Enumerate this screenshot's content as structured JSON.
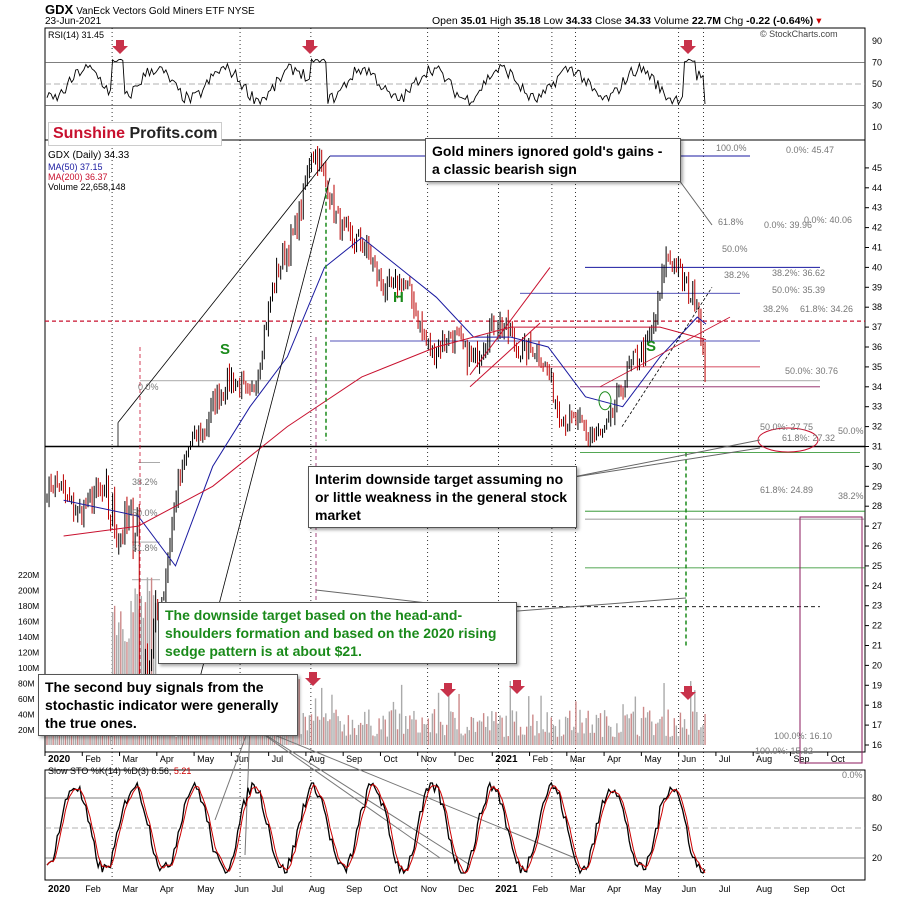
{
  "header": {
    "ticker": "GDX",
    "name": "VanEck Vectors Gold Miners ETF",
    "exchange": "NYSE",
    "date": "23-Jun-2021",
    "open_label": "Open",
    "open": "35.01",
    "high_label": "High",
    "high": "35.18",
    "low_label": "Low",
    "low": "34.33",
    "close_label": "Close",
    "close": "34.33",
    "volume_label": "Volume",
    "volume": "22.7M",
    "chg_label": "Chg",
    "chg": "-0.22 (-0.64%)",
    "source": "© StockCharts.com"
  },
  "logo": {
    "part1": "Sunshine",
    "part2": "Profits.com"
  },
  "legend": {
    "price": "GDX (Daily) 34.33",
    "ma50": "MA(50) 37.15",
    "ma200": "MA(200) 36.37",
    "volume": "Volume 22,658,148",
    "rsi": "RSI(14) 31.45",
    "sto_label": "Slow STO %K(14) %D(3)",
    "sto_k": "8.56,",
    "sto_d": "5.21"
  },
  "annotations": {
    "gold_miners": "Gold miners ignored gold's gains - a classic bearish sign",
    "interim": "Interim downside target assuming no or little weakness in the general stock market",
    "downside": "The downside target based on the head-and-shoulders formation and based on the 2020 rising sedge pattern is at about $21.",
    "buy_signals": "The second buy signals from the stochastic indicator were generally the true ones.",
    "S1": "S",
    "H": "H",
    "S2": "S"
  },
  "fib_labels": {
    "f1": "100.0%",
    "f2": "0.0%: 45.47",
    "f3": "61.8%",
    "f4": "0.0%: 39.96",
    "f5": "0.0%: 40.06",
    "f6": "50.0%",
    "f7": "38.2%: 36.62",
    "f8": "38.2%",
    "f9": "50.0%: 35.39",
    "f10": "38.2%",
    "f11": "61.8%: 34.26",
    "f12": "0.0%",
    "f13": "38.2%",
    "f14": "50.0%: 30.76",
    "f15": "50.0%: 27.75",
    "f16": "50.0%",
    "f17": "61.8%: 27.32",
    "f18": "61.8%: 24.89",
    "f19": "38.2%",
    "f20": "100.0%: 16.10",
    "f21": "100.0%: 15.82",
    "f22": "0.0%",
    "f23": "38.2%",
    "f24": "50.0%",
    "f25": "61.8%",
    "f26": "0.0%"
  },
  "chart_data": {
    "type": "line",
    "title": "GDX VanEck Vectors Gold Miners ETF NYSE",
    "x_tick_labels": [
      "2020",
      "Feb",
      "Mar",
      "Apr",
      "May",
      "Jun",
      "Jul",
      "Aug",
      "Sep",
      "Oct",
      "Nov",
      "Dec",
      "2021",
      "Feb",
      "Mar",
      "Apr",
      "May",
      "Jun",
      "Jul",
      "Aug",
      "Sep",
      "Oct"
    ],
    "price_axis": {
      "ylim": [
        16,
        46
      ],
      "ticks": [
        16,
        17,
        18,
        19,
        20,
        21,
        22,
        23,
        24,
        25,
        26,
        27,
        28,
        29,
        30,
        31,
        32,
        33,
        34,
        35,
        36,
        37,
        38,
        39,
        40,
        41,
        42,
        43,
        44,
        45
      ]
    },
    "volume_axis": {
      "ticks": [
        "20M",
        "40M",
        "60M",
        "80M",
        "100M",
        "120M",
        "140M",
        "160M",
        "180M",
        "200M",
        "220M"
      ]
    },
    "rsi_axis": {
      "ylim": [
        0,
        100
      ],
      "ticks": [
        10,
        30,
        50,
        70,
        90
      ]
    },
    "sto_axis": {
      "ylim": [
        0,
        100
      ],
      "ticks": [
        20,
        50,
        80
      ]
    },
    "series": [
      {
        "name": "GDX (Daily)",
        "x": [
          "2020-01",
          "2020-02",
          "2020-03",
          "2020-03-16",
          "2020-04",
          "2020-05",
          "2020-06",
          "2020-07",
          "2020-08-05",
          "2020-09",
          "2020-10",
          "2020-11",
          "2020-12",
          "2021-01",
          "2021-02",
          "2021-03",
          "2021-04",
          "2021-05",
          "2021-05-20",
          "2021-06",
          "2021-06-23"
        ],
        "values": [
          28.5,
          28.0,
          27.0,
          16.5,
          28.5,
          33.5,
          34.0,
          41.0,
          45.5,
          40.5,
          39.0,
          36.0,
          36.0,
          37.0,
          34.5,
          31.0,
          33.5,
          38.5,
          40.0,
          39.0,
          34.33
        ]
      },
      {
        "name": "MA(50)",
        "x": [
          "2020-01",
          "2020-03",
          "2020-04",
          "2020-05",
          "2020-06",
          "2020-07",
          "2020-08",
          "2020-09",
          "2020-10",
          "2020-11",
          "2020-12",
          "2021-01",
          "2021-02",
          "2021-03",
          "2021-04",
          "2021-05",
          "2021-06",
          "2021-06-23"
        ],
        "values": [
          28.3,
          27.5,
          25.0,
          30.0,
          33.0,
          35.5,
          40.0,
          41.5,
          40.0,
          38.5,
          36.5,
          36.5,
          36.0,
          33.5,
          33.0,
          35.5,
          37.5,
          37.15
        ]
      },
      {
        "name": "MA(200)",
        "x": [
          "2020-01",
          "2020-03",
          "2020-05",
          "2020-07",
          "2020-09",
          "2020-11",
          "2021-01",
          "2021-03",
          "2021-05",
          "2021-06-23"
        ],
        "values": [
          26.5,
          27.0,
          29.0,
          32.0,
          34.5,
          36.0,
          37.0,
          37.0,
          37.0,
          36.37
        ]
      }
    ],
    "rsi_last": 31.45,
    "sto_last_k": 8.56,
    "sto_last_d": 5.21
  }
}
